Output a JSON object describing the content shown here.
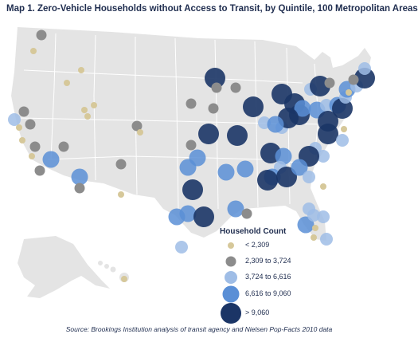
{
  "title": "Map 1. Zero-Vehicle Households without Access to Transit, by Quintile, 100 Metropolitan Areas",
  "legend": {
    "title": "Household Count",
    "classes": [
      {
        "label": "< 2,309",
        "color": "#d6c89a"
      },
      {
        "label": "2,309 to 3,724",
        "color": "#8c8c8c"
      },
      {
        "label": "3,724 to 6,616",
        "color": "#9fbde6"
      },
      {
        "label": "6,616 to 9,060",
        "color": "#5a8fd6"
      },
      {
        "label": "> 9,060",
        "color": "#1b3566"
      }
    ]
  },
  "source": "Source: Brookings Institution analysis of transit agency and Nielsen Pop-Facts 2010 data",
  "colors": {
    "land": "#e4e4e4",
    "state_border": "#ffffff"
  }
}
